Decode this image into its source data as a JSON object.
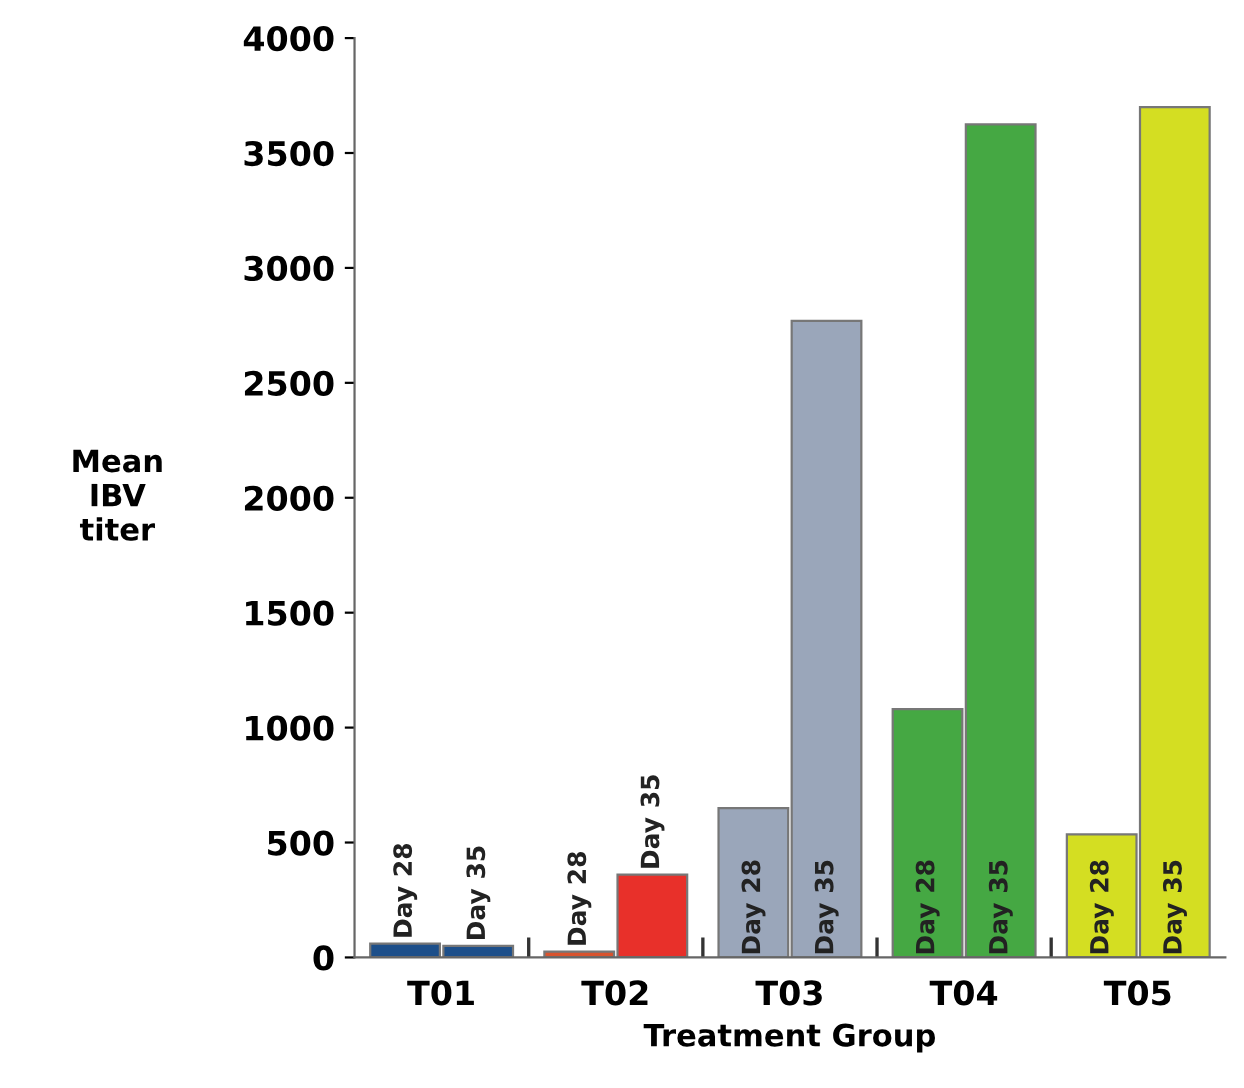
{
  "chart_data": {
    "type": "bar",
    "xlabel": "Treatment Group",
    "ylabel": "Mean\nIBV\ntiter",
    "categories": [
      "T01",
      "T02",
      "T03",
      "T04",
      "T05"
    ],
    "series": [
      {
        "name": "Day 28",
        "colors": [
          "#1d4f8a",
          "#d9532e",
          "#9aa6ba",
          "#45a843",
          "#d4de22"
        ],
        "values": [
          60,
          25,
          650,
          1080,
          535
        ]
      },
      {
        "name": "Day 35",
        "colors": [
          "#1d4f8a",
          "#e8302a",
          "#9aa6ba",
          "#45a843",
          "#d4de22"
        ],
        "values": [
          50,
          360,
          2770,
          3625,
          3700
        ]
      }
    ],
    "ylim": [
      0,
      4000
    ],
    "yticks": [
      0,
      500,
      1000,
      1500,
      2000,
      2500,
      3000,
      3500,
      4000
    ],
    "grid": false,
    "legend": false
  }
}
